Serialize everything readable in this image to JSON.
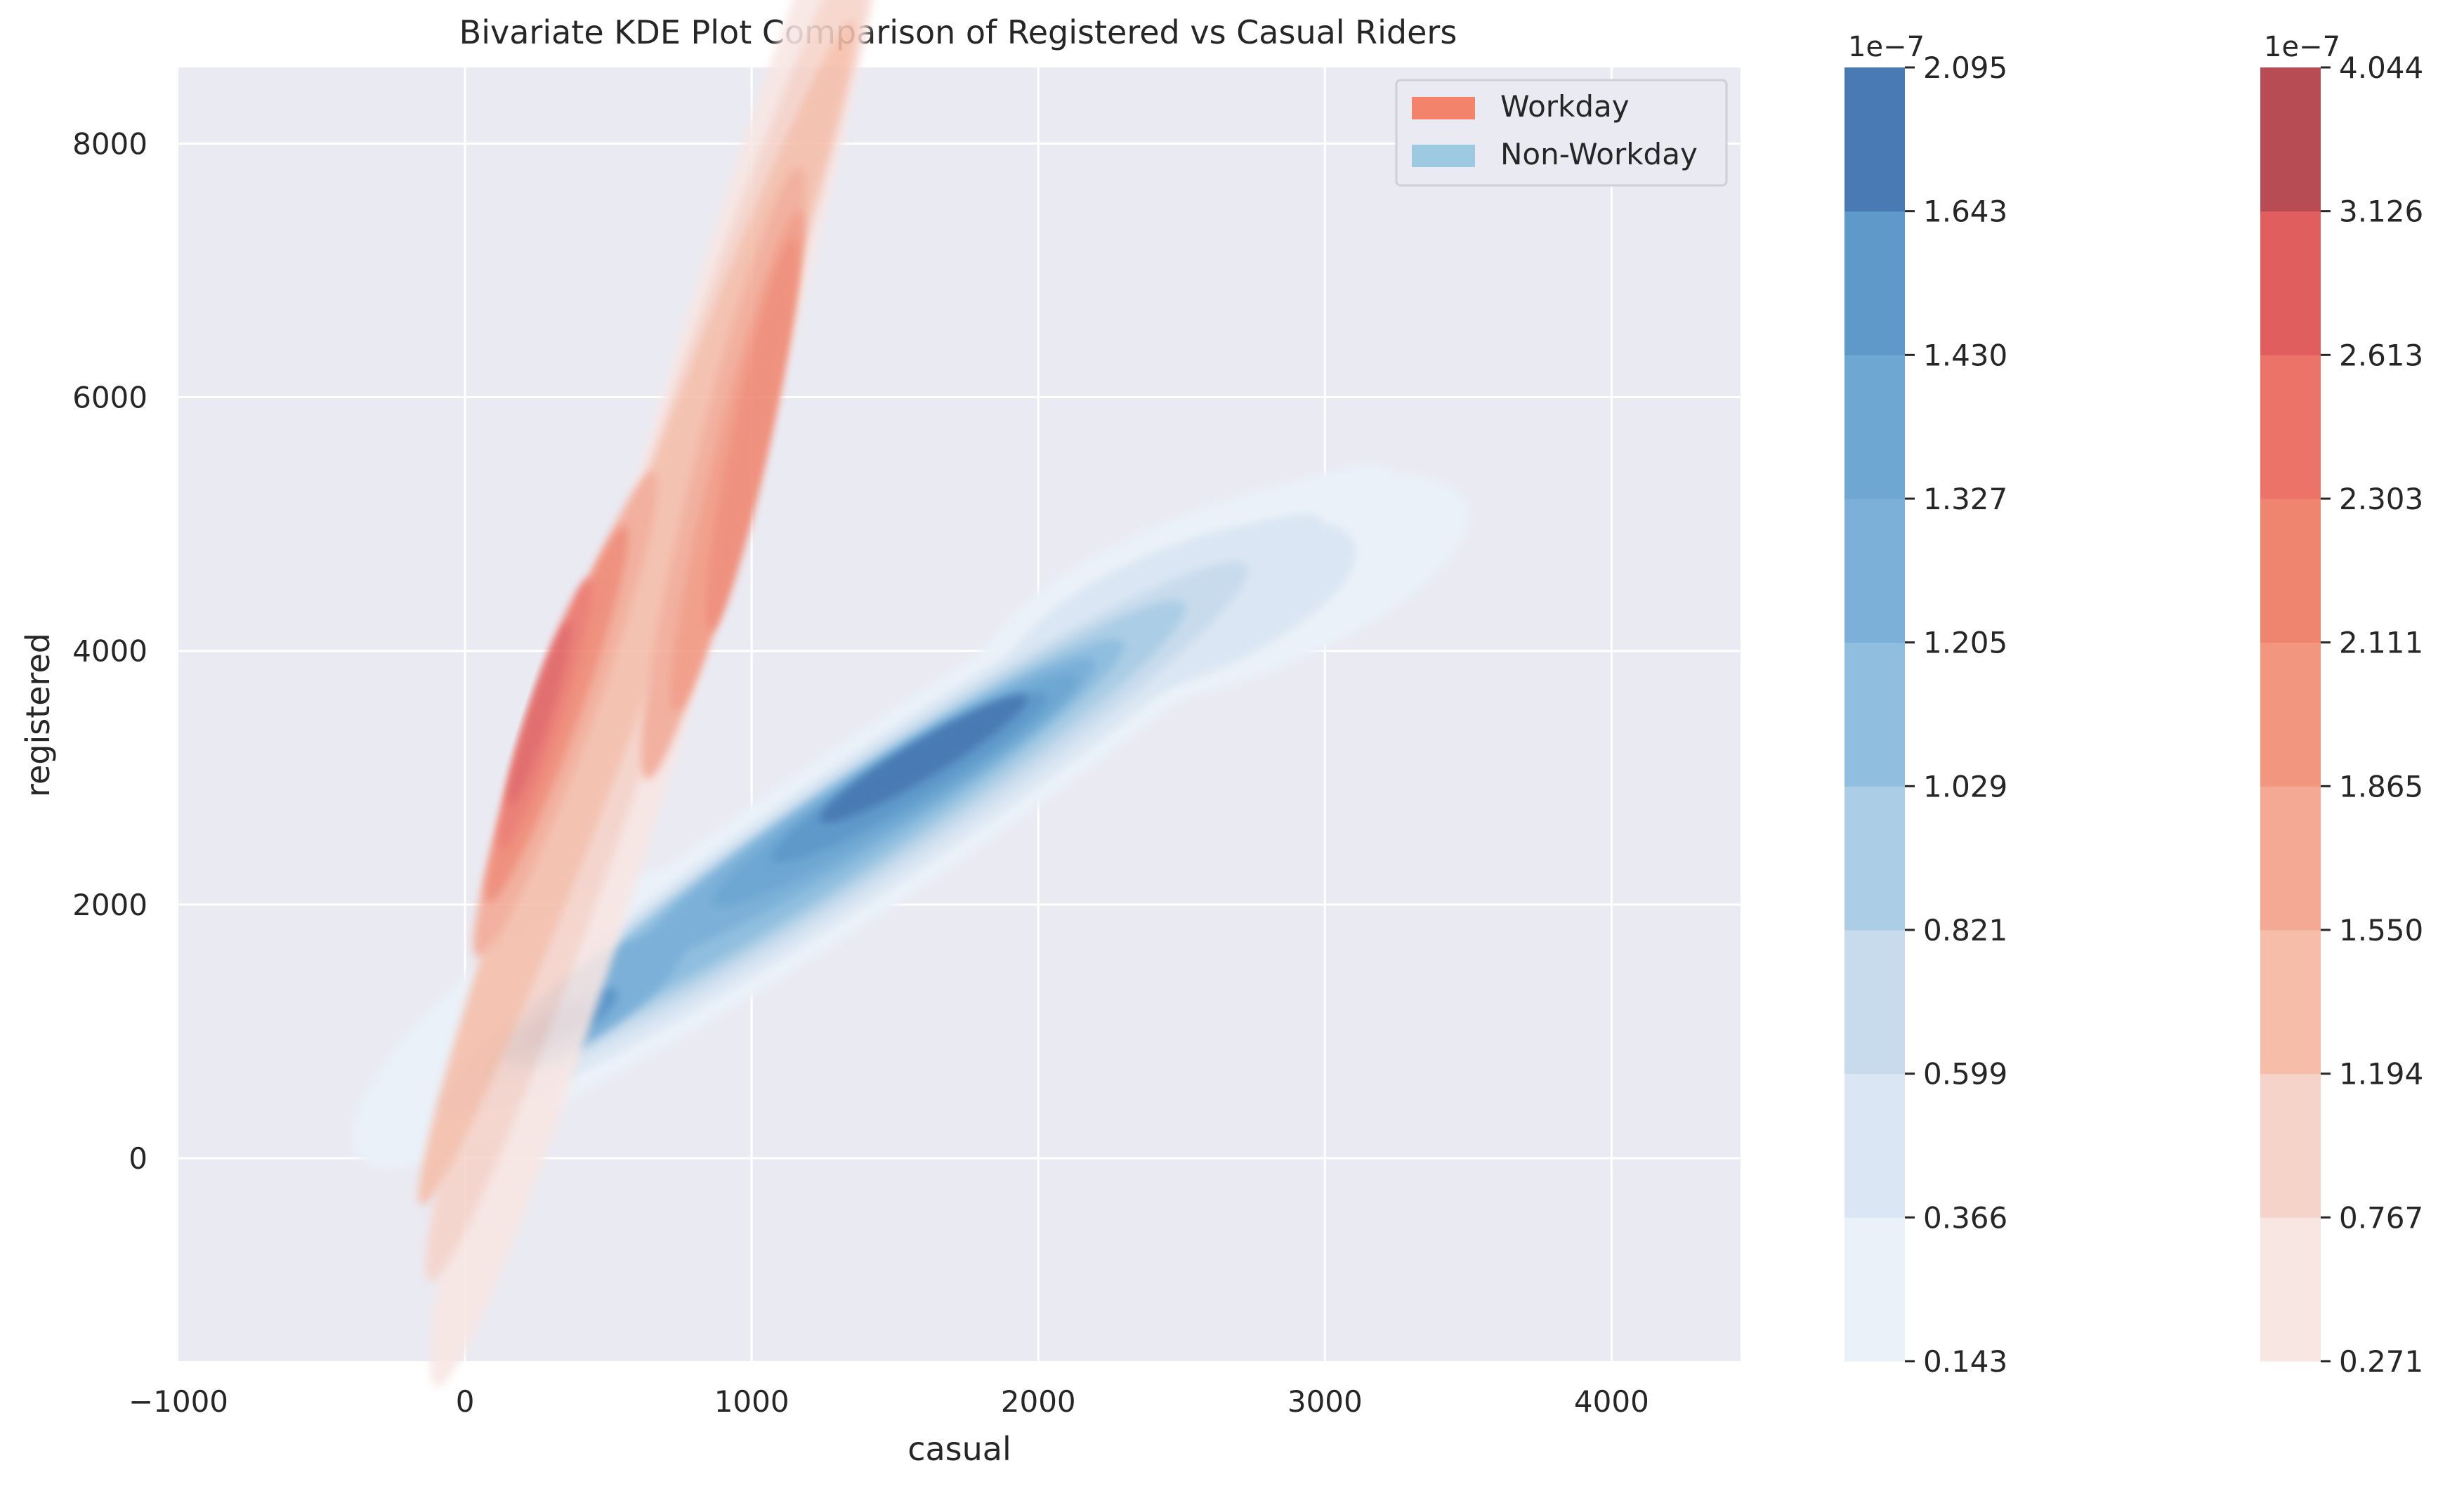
{
  "chart_data": {
    "type": "kde2d",
    "title": "Bivariate KDE Plot Comparison of Registered vs Casual Riders",
    "xlabel": "casual",
    "ylabel": "registered",
    "xlim": [
      -1000,
      4450
    ],
    "ylim": [
      -1600,
      8600
    ],
    "xticks": [
      -1000,
      0,
      1000,
      2000,
      3000,
      4000
    ],
    "yticks": [
      0,
      2000,
      4000,
      6000,
      8000
    ],
    "grid": true,
    "legend_position": "top-right",
    "series": [
      {
        "name": "Workday",
        "color": "#f4836b",
        "colormap": "Reds",
        "peaks": [
          {
            "x": 250,
            "y": 3500
          },
          {
            "x": 1000,
            "y": 5800
          }
        ]
      },
      {
        "name": "Non-Workday",
        "color": "#9ecae1",
        "colormap": "Blues",
        "peaks": [
          {
            "x": 320,
            "y": 1050
          },
          {
            "x": 1600,
            "y": 3150
          }
        ]
      }
    ],
    "colorbars": [
      {
        "series": "Non-Workday",
        "offset_label": "1e−7",
        "ticks": [
          "0.143",
          "0.366",
          "0.599",
          "0.821",
          "1.029",
          "1.205",
          "1.327",
          "1.430",
          "1.643",
          "2.095"
        ],
        "colors": [
          "#eaf1f9",
          "#dae6f3",
          "#c8dbed",
          "#abcde5",
          "#8fbedf",
          "#7cb0d8",
          "#6da7d2",
          "#5e99ca",
          "#4a7ab3"
        ]
      },
      {
        "series": "Workday",
        "offset_label": "1e−7",
        "ticks": [
          "0.271",
          "0.767",
          "1.194",
          "1.550",
          "1.865",
          "2.111",
          "2.303",
          "2.613",
          "3.126",
          "4.044"
        ],
        "colors": [
          "#f8e6e3",
          "#f6d3c9",
          "#f6bda8",
          "#f4a994",
          "#f2967f",
          "#f0856f",
          "#ec7367",
          "#e05e5e",
          "#b84c55"
        ]
      }
    ]
  }
}
